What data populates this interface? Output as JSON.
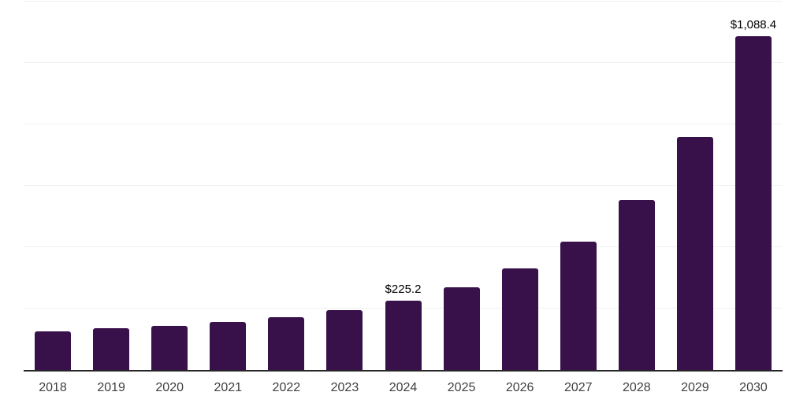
{
  "chart_data": {
    "type": "bar",
    "categories": [
      "2018",
      "2019",
      "2020",
      "2021",
      "2022",
      "2023",
      "2024",
      "2025",
      "2026",
      "2027",
      "2028",
      "2029",
      "2030"
    ],
    "values": [
      126,
      135,
      144,
      157,
      171,
      194,
      225.2,
      270,
      330,
      419,
      553,
      760,
      1088.4
    ],
    "point_labels": [
      "",
      "",
      "",
      "",
      "",
      "",
      "$225.2",
      "",
      "",
      "",
      "",
      "",
      "$1,088.4"
    ],
    "title": "",
    "xlabel": "",
    "ylabel": "",
    "ylim": [
      0,
      1200
    ],
    "grid": true,
    "gridline_step": 200,
    "legend": false,
    "colors": {
      "bar": "#38114B",
      "value_label": "#000000",
      "tick_label": "#3f3f3f",
      "axis_line": "#262626",
      "gridline": "#f0f0f0",
      "background": "#ffffff"
    }
  }
}
